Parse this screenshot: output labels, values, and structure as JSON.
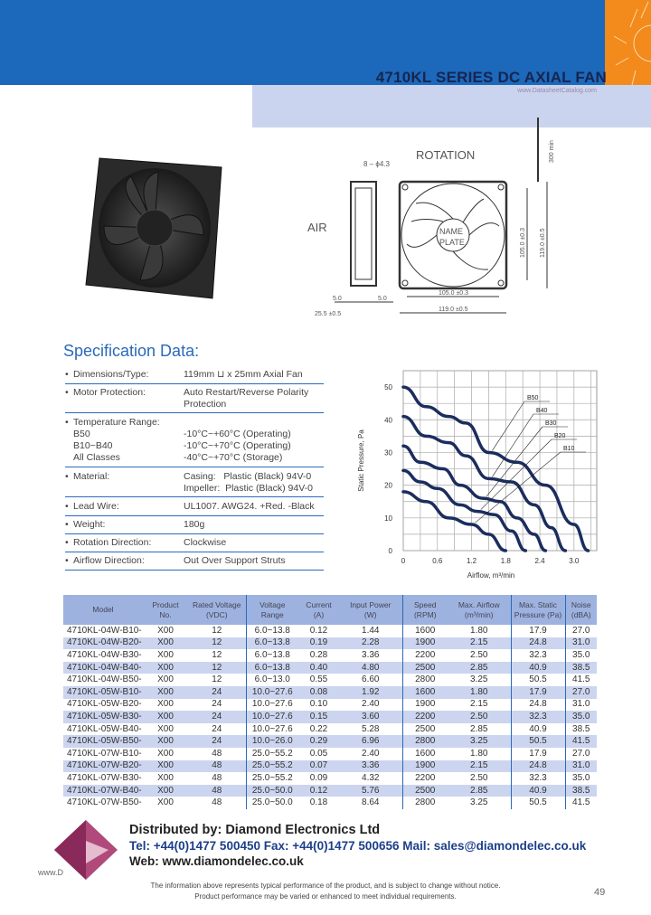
{
  "header": {
    "tagline": "www.DatasheetCatalog.com",
    "title": "4710KL SERIES DC AXIAL FAN"
  },
  "drawing": {
    "rotation": "ROTATION",
    "air": "AIR",
    "holes": "8 – ϕ4.3",
    "name_plate_1": "NAME",
    "name_plate_2": "PLATE",
    "dim_lead": "300 min",
    "dim_105v": "105.0 ±0.3",
    "dim_119v": "119.0 ±0.5",
    "dim_105h": "105.0 ±0.3",
    "dim_119h": "119.0 ±0.5",
    "dim_5a": "5.0",
    "dim_5b": "5.0",
    "dim_25": "25.5 ±0.5"
  },
  "spec": {
    "heading": "Specification Data:",
    "items": [
      {
        "label": "Dimensions/Type:",
        "value": "119mm ⊔ x 25mm Axial Fan"
      },
      {
        "label": "Motor Protection:",
        "value": "Auto Restart/Reverse Polarity",
        "value2": "Protection"
      },
      {
        "label": "Temperature Range:",
        "rows": [
          {
            "label": "B50",
            "value": "-10°C~+60°C (Operating)"
          },
          {
            "label": "B10~B40",
            "value": "-10°C~+70°C (Operating)"
          },
          {
            "label": "All Classes",
            "value": "-40°C~+70°C (Storage)"
          }
        ]
      },
      {
        "label": "Material:",
        "value": "Casing:   Plastic (Black) 94V-0",
        "value2": "Impeller:  Plastic (Black) 94V-0"
      },
      {
        "label": "Lead Wire:",
        "value": "UL1007. AWG24. +Red. -Black"
      },
      {
        "label": "Weight:",
        "value": "180g"
      },
      {
        "label": "Rotation Direction:",
        "value": "Clockwise"
      },
      {
        "label": "Airflow Direction:",
        "value": "Out Over Support Struts"
      }
    ]
  },
  "chart_data": {
    "type": "line",
    "title": "",
    "xlabel": "Airflow, m³/min",
    "ylabel": "Static Pressure, Pa",
    "xlim": [
      0,
      3.4
    ],
    "ylim": [
      0,
      55
    ],
    "xticks": [
      "0",
      "0.6",
      "1.2",
      "1.8",
      "2.4",
      "3.0"
    ],
    "yticks": [
      "0",
      "10",
      "20",
      "30",
      "40",
      "50"
    ],
    "grid": true,
    "series": [
      {
        "name": "B50",
        "points": [
          [
            0,
            50
          ],
          [
            0.4,
            44
          ],
          [
            0.8,
            41
          ],
          [
            1.1,
            39
          ],
          [
            1.5,
            30
          ],
          [
            2.0,
            27
          ],
          [
            2.5,
            20
          ],
          [
            3.0,
            8
          ],
          [
            3.25,
            0
          ]
        ]
      },
      {
        "name": "B40",
        "points": [
          [
            0,
            41
          ],
          [
            0.4,
            35
          ],
          [
            0.8,
            33
          ],
          [
            1.1,
            29
          ],
          [
            1.5,
            22
          ],
          [
            1.9,
            21
          ],
          [
            2.3,
            14
          ],
          [
            2.6,
            7
          ],
          [
            2.85,
            0
          ]
        ]
      },
      {
        "name": "B30",
        "points": [
          [
            0,
            32
          ],
          [
            0.3,
            27
          ],
          [
            0.7,
            25
          ],
          [
            1.0,
            20
          ],
          [
            1.4,
            16
          ],
          [
            1.7,
            15
          ],
          [
            2.0,
            10
          ],
          [
            2.3,
            5
          ],
          [
            2.5,
            0
          ]
        ]
      },
      {
        "name": "B20",
        "points": [
          [
            0,
            24.5
          ],
          [
            0.3,
            21
          ],
          [
            0.6,
            19
          ],
          [
            1.0,
            14
          ],
          [
            1.3,
            12
          ],
          [
            1.6,
            11
          ],
          [
            1.9,
            6
          ],
          [
            2.15,
            0
          ]
        ]
      },
      {
        "name": "B10",
        "points": [
          [
            0,
            18
          ],
          [
            0.4,
            15
          ],
          [
            0.8,
            10
          ],
          [
            1.2,
            8
          ],
          [
            1.5,
            5
          ],
          [
            1.8,
            0
          ]
        ]
      }
    ],
    "line_color": "#1b2d5e"
  },
  "table": {
    "headers": [
      "Model",
      "Product\nNo.",
      "Rated Voltage\n(VDC)",
      "Voltage\nRange",
      "Current\n(A)",
      "Input Power\n(W)",
      "Speed\n(RPM)",
      "Max. Airflow\n(m³/min)",
      "Max. Static\nPressure (Pa)",
      "Noise\n(dBA)"
    ],
    "rows": [
      [
        "4710KL-04W-B10-",
        "X00",
        "12",
        "6.0~13.8",
        "0.12",
        "1.44",
        "1600",
        "1.80",
        "17.9",
        "27.0"
      ],
      [
        "4710KL-04W-B20-",
        "X00",
        "12",
        "6.0~13.8",
        "0.19",
        "2.28",
        "1900",
        "2.15",
        "24.8",
        "31.0"
      ],
      [
        "4710KL-04W-B30-",
        "X00",
        "12",
        "6.0~13.8",
        "0.28",
        "3.36",
        "2200",
        "2.50",
        "32.3",
        "35.0"
      ],
      [
        "4710KL-04W-B40-",
        "X00",
        "12",
        "6.0~13.8",
        "0.40",
        "4.80",
        "2500",
        "2.85",
        "40.9",
        "38.5"
      ],
      [
        "4710KL-04W-B50-",
        "X00",
        "12",
        "6.0~13.0",
        "0.55",
        "6.60",
        "2800",
        "3.25",
        "50.5",
        "41.5"
      ],
      [
        "4710KL-05W-B10-",
        "X00",
        "24",
        "10.0~27.6",
        "0.08",
        "1.92",
        "1600",
        "1.80",
        "17.9",
        "27.0"
      ],
      [
        "4710KL-05W-B20-",
        "X00",
        "24",
        "10.0~27.6",
        "0.10",
        "2.40",
        "1900",
        "2.15",
        "24.8",
        "31.0"
      ],
      [
        "4710KL-05W-B30-",
        "X00",
        "24",
        "10.0~27.6",
        "0.15",
        "3.60",
        "2200",
        "2.50",
        "32.3",
        "35.0"
      ],
      [
        "4710KL-05W-B40-",
        "X00",
        "24",
        "10.0~27.6",
        "0.22",
        "5.28",
        "2500",
        "2.85",
        "40.9",
        "38.5"
      ],
      [
        "4710KL-05W-B50-",
        "X00",
        "24",
        "10.0~26.0",
        "0.29",
        "6.96",
        "2800",
        "3.25",
        "50.5",
        "41.5"
      ],
      [
        "4710KL-07W-B10-",
        "X00",
        "48",
        "25.0~55.2",
        "0.05",
        "2.40",
        "1600",
        "1.80",
        "17.9",
        "27.0"
      ],
      [
        "4710KL-07W-B20-",
        "X00",
        "48",
        "25.0~55.2",
        "0.07",
        "3.36",
        "1900",
        "2.15",
        "24.8",
        "31.0"
      ],
      [
        "4710KL-07W-B30-",
        "X00",
        "48",
        "25.0~55.2",
        "0.09",
        "4.32",
        "2200",
        "2.50",
        "32.3",
        "35.0"
      ],
      [
        "4710KL-07W-B40-",
        "X00",
        "48",
        "25.0~50.0",
        "0.12",
        "5.76",
        "2500",
        "2.85",
        "40.9",
        "38.5"
      ],
      [
        "4710KL-07W-B50-",
        "X00",
        "48",
        "25.0~50.0",
        "0.18",
        "8.64",
        "2800",
        "3.25",
        "50.5",
        "41.5"
      ]
    ]
  },
  "footer": {
    "distributor": "Distributed by: Diamond Electronics Ltd",
    "contact": "Tel: +44(0)1477 500450 Fax: +44(0)1477 500656 Mail: sales@diamondelec.co.uk",
    "web": "Web: www.diamondelec.co.uk",
    "www_fragment": "www.D",
    "note1": "The information above represents typical performance of the product, and is subject to change without notice.",
    "note2": "Product performance may be varied or enhanced to meet individual requirements.",
    "page": "49"
  },
  "colors": {
    "brand_blue": "#1c68bb",
    "orange": "#f28a1c",
    "title_band": "#cbd4ee",
    "table_header": "#9db2df",
    "table_alt": "#ccd5ef"
  }
}
